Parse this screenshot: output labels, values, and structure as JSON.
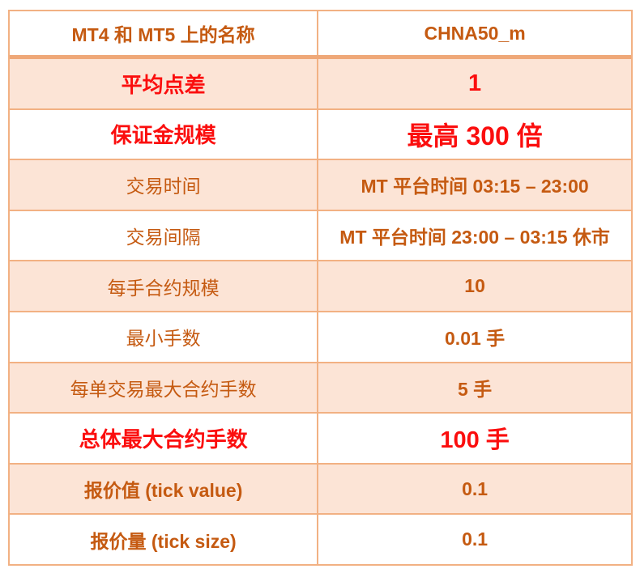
{
  "colors": {
    "accent_orange": "#C55A11",
    "red": "#FB0E0E",
    "peach_fill": "#FCE4D6",
    "border_color": "#F2B183",
    "border_thick": "#EFA878"
  },
  "table": {
    "instrument": "CHNA50_m",
    "rows": [
      {
        "label": "MT4 和 MT5 上的名称",
        "value": "CHNA50_m"
      },
      {
        "label": "平均点差",
        "value": "1"
      },
      {
        "label": "保证金规模",
        "value": "最高 300 倍"
      },
      {
        "label": "交易时间",
        "value": "MT 平台时间 03:15 – 23:00"
      },
      {
        "label": "交易间隔",
        "value": "MT 平台时间 23:00 – 03:15 休市"
      },
      {
        "label": "每手合约规模",
        "value": "10"
      },
      {
        "label": "最小手数",
        "value": "0.01 手"
      },
      {
        "label": "每单交易最大合约手数",
        "value": "5 手"
      },
      {
        "label": "总体最大合约手数",
        "value": "100 手"
      },
      {
        "label": "报价值 (tick value)",
        "value": "0.1"
      },
      {
        "label": "报价量 (tick size)",
        "value": "0.1"
      }
    ]
  }
}
